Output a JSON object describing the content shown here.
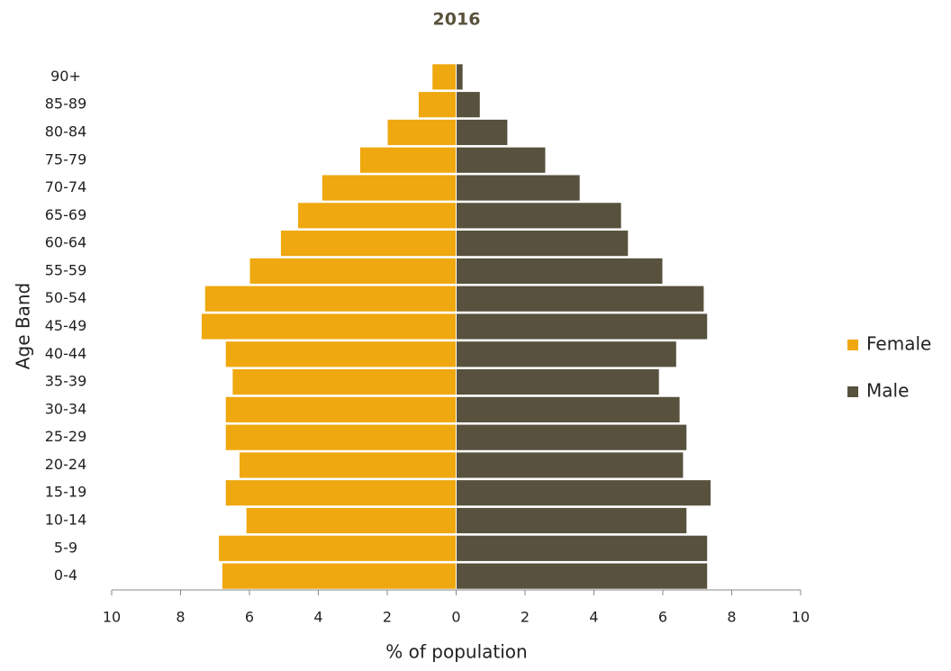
{
  "chart_data": {
    "type": "pyramid",
    "title": "2016",
    "x_label": "% of population",
    "y_label": "Age Band",
    "categories": [
      "0-4",
      "5-9",
      "10-14",
      "15-19",
      "20-24",
      "25-29",
      "30-34",
      "35-39",
      "40-44",
      "45-49",
      "50-54",
      "55-59",
      "60-64",
      "65-69",
      "70-74",
      "75-79",
      "80-84",
      "85-89",
      "90+"
    ],
    "series": [
      {
        "name": "Female",
        "color": "#efa80f",
        "values": [
          -6.8,
          -6.9,
          -6.1,
          -6.7,
          -6.3,
          -6.7,
          -6.7,
          -6.5,
          -6.7,
          -7.4,
          -7.3,
          -6.0,
          -5.1,
          -4.6,
          -3.9,
          -2.8,
          -2.0,
          -1.1,
          -0.7
        ]
      },
      {
        "name": "Male",
        "color": "#57513d",
        "values": [
          7.3,
          7.3,
          6.7,
          7.4,
          6.6,
          6.7,
          6.5,
          5.9,
          6.4,
          7.3,
          7.2,
          6.0,
          5.0,
          4.8,
          3.6,
          2.6,
          1.5,
          0.7,
          0.2
        ]
      }
    ],
    "xlim": [
      -10,
      10
    ],
    "xticks": [
      {
        "value": -10,
        "label": "10"
      },
      {
        "value": -8,
        "label": "8"
      },
      {
        "value": -6,
        "label": "6"
      },
      {
        "value": -4,
        "label": "4"
      },
      {
        "value": -2,
        "label": "2"
      },
      0,
      2,
      4,
      6,
      8,
      10
    ],
    "legend": "right"
  }
}
